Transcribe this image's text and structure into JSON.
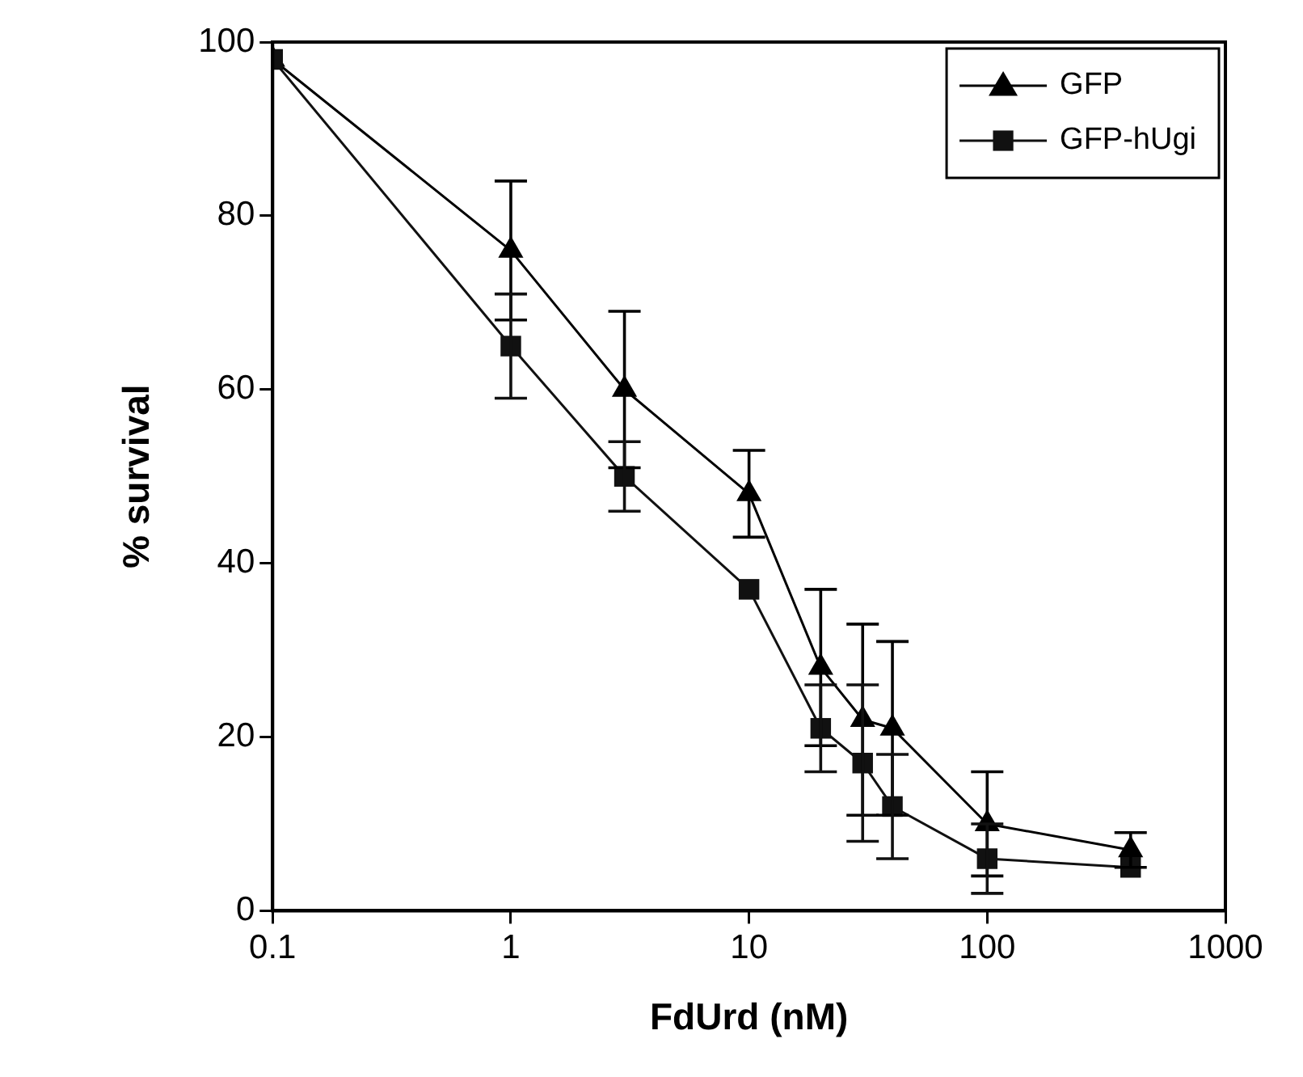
{
  "chart_data": {
    "type": "line",
    "xlabel": "FdUrd (nM)",
    "ylabel": "% survival",
    "log": "x",
    "xlim": [
      0.1,
      1000
    ],
    "xticks": [
      0.1,
      1,
      10,
      100,
      1000
    ],
    "ylim": [
      0,
      100
    ],
    "yticks": [
      0,
      20,
      40,
      60,
      80,
      100
    ],
    "grid": false,
    "legend": "top right",
    "line_style": "solid",
    "x": [
      0.1,
      1,
      3,
      10,
      20,
      30,
      40,
      100,
      400
    ],
    "series": [
      {
        "name": "GFP",
        "color": "#000000",
        "marker": "triangle",
        "values": [
          98,
          76,
          60,
          48,
          28,
          22,
          21,
          10,
          7
        ],
        "errors": [
          null,
          8,
          9,
          5,
          9,
          11,
          10,
          6,
          2
        ]
      },
      {
        "name": "GFP-hUgi",
        "color": "#111111",
        "marker": "square",
        "values": [
          98,
          65,
          50,
          37,
          21,
          17,
          12,
          6,
          5
        ],
        "errors": [
          null,
          6,
          4,
          null,
          5,
          9,
          6,
          4,
          null
        ]
      }
    ]
  }
}
